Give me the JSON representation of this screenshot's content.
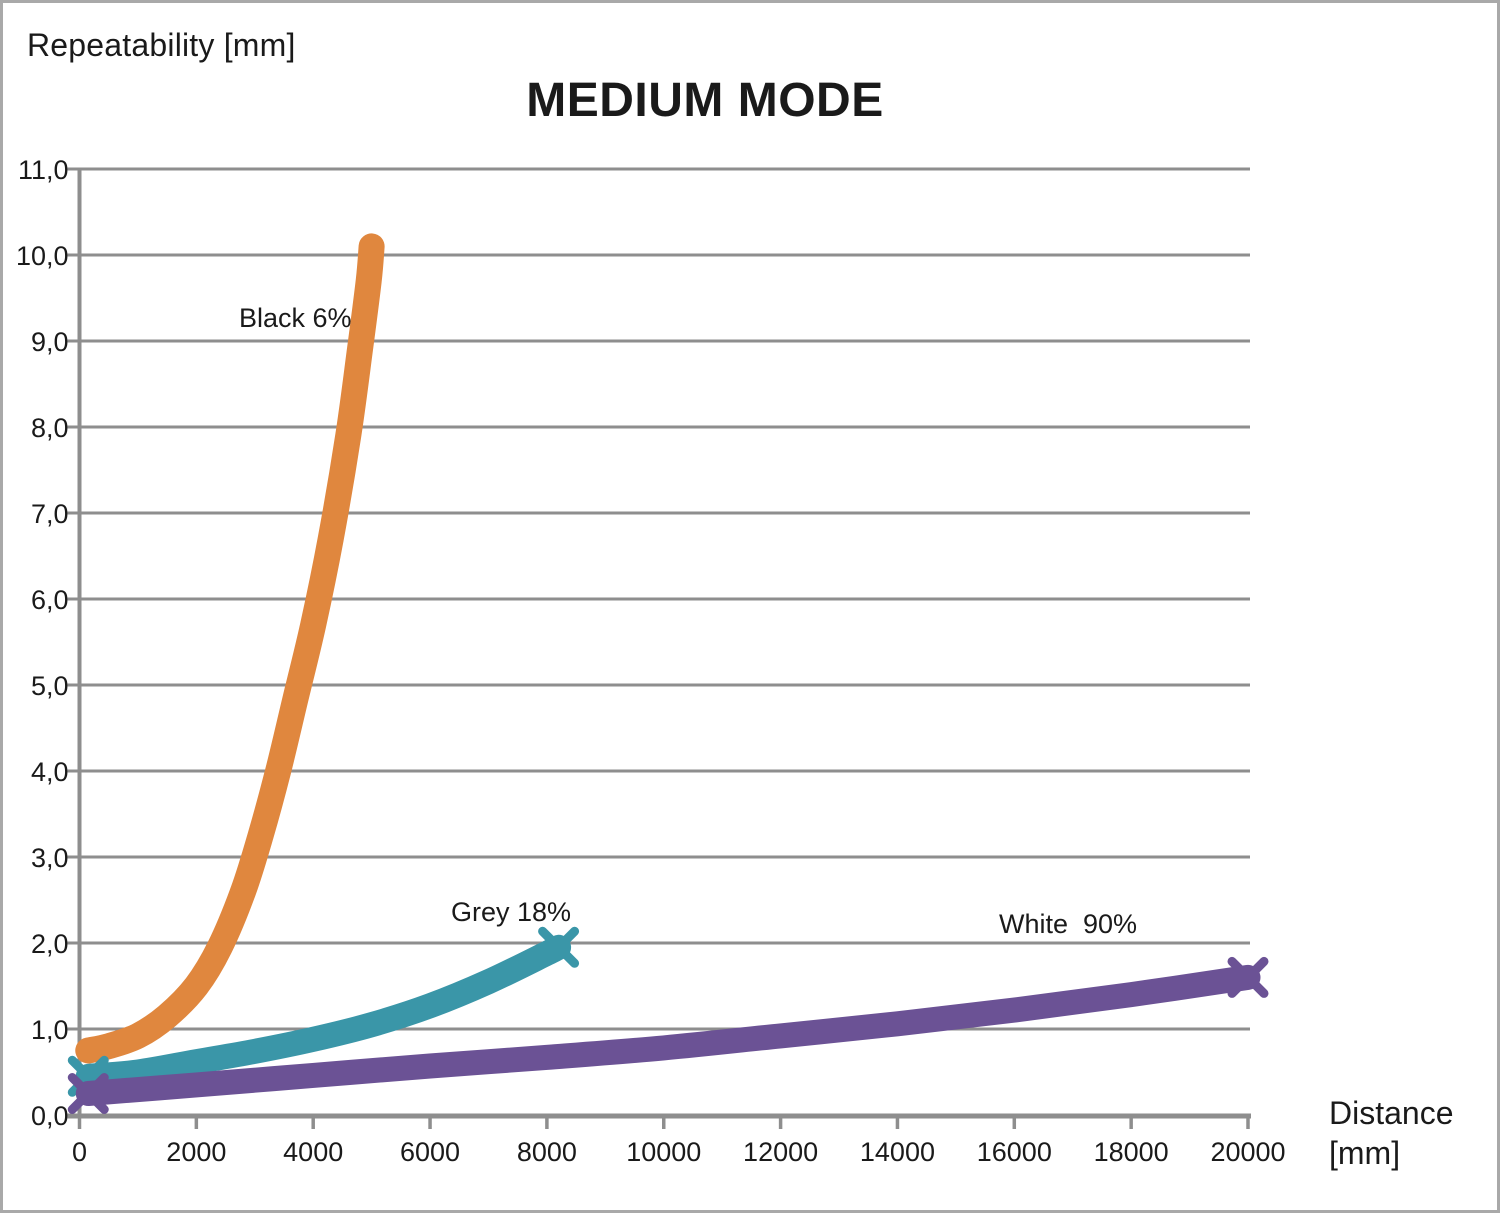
{
  "page": {
    "title": "MEDIUM MODE",
    "y_axis_title": "Repeatability [mm]",
    "x_axis_title_line1": "Distance",
    "x_axis_title_line2": "[mm]"
  },
  "chart_data": {
    "type": "line",
    "title": "MEDIUM MODE",
    "xlabel": "Distance [mm]",
    "ylabel": "Repeatability [mm]",
    "xlim": [
      0,
      20000
    ],
    "ylim": [
      0,
      11
    ],
    "grid": true,
    "legend_position": "inline-labels",
    "decimal_separator": ",",
    "x_ticks": [
      0,
      2000,
      4000,
      6000,
      8000,
      10000,
      12000,
      14000,
      16000,
      18000,
      20000
    ],
    "x_tick_labels": [
      "0",
      "2000",
      "4000",
      "6000",
      "8000",
      "10000",
      "12000",
      "14000",
      "16000",
      "18000",
      "20000"
    ],
    "y_ticks": [
      0,
      1,
      2,
      3,
      4,
      5,
      6,
      7,
      8,
      9,
      10,
      11
    ],
    "y_tick_labels": [
      "0,0",
      "1,0",
      "2,0",
      "3,0",
      "4,0",
      "5,0",
      "6,0",
      "7,0",
      "8,0",
      "9,0",
      "10,0",
      "11,0"
    ],
    "colors": {
      "grid": "#8e8e8e",
      "axis": "#8e8e8e",
      "text": "#1a1a1a",
      "border": "#a9a9a9"
    },
    "series": [
      {
        "name": "Black 6%",
        "label": "Black 6%",
        "color": "#e0873e",
        "marker": "circle",
        "line_width": 26,
        "points": [
          [
            150,
            0.75
          ],
          [
            500,
            0.8
          ],
          [
            1000,
            0.92
          ],
          [
            1500,
            1.15
          ],
          [
            2000,
            1.5
          ],
          [
            2400,
            1.95
          ],
          [
            2800,
            2.6
          ],
          [
            3100,
            3.25
          ],
          [
            3400,
            4.0
          ],
          [
            3700,
            4.85
          ],
          [
            4000,
            5.7
          ],
          [
            4300,
            6.7
          ],
          [
            4600,
            7.9
          ],
          [
            4800,
            8.9
          ],
          [
            4950,
            9.7
          ],
          [
            5000,
            10.1
          ]
        ]
      },
      {
        "name": "Grey 18%",
        "label": "Grey 18%",
        "color": "#3a96a8",
        "marker": "x",
        "line_width": 25,
        "points": [
          [
            150,
            0.45
          ],
          [
            1000,
            0.5
          ],
          [
            2000,
            0.62
          ],
          [
            3000,
            0.74
          ],
          [
            4000,
            0.88
          ],
          [
            5000,
            1.05
          ],
          [
            6000,
            1.27
          ],
          [
            7000,
            1.55
          ],
          [
            8000,
            1.88
          ],
          [
            8200,
            1.95
          ]
        ]
      },
      {
        "name": "White 90%",
        "label": "White  90%",
        "color": "#6b5295",
        "marker": "x",
        "line_width": 25,
        "points": [
          [
            150,
            0.25
          ],
          [
            2000,
            0.35
          ],
          [
            4000,
            0.46
          ],
          [
            6000,
            0.57
          ],
          [
            8000,
            0.67
          ],
          [
            10000,
            0.78
          ],
          [
            12000,
            0.92
          ],
          [
            14000,
            1.06
          ],
          [
            16000,
            1.22
          ],
          [
            18000,
            1.4
          ],
          [
            20000,
            1.6
          ]
        ]
      }
    ]
  }
}
